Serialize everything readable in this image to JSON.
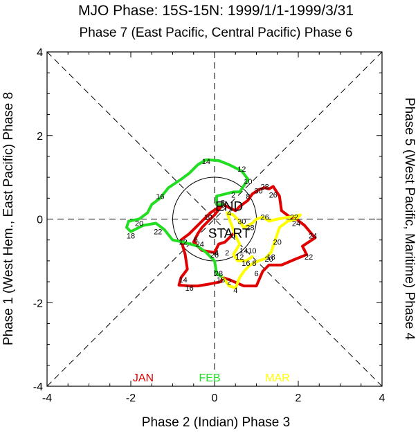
{
  "title": "MJO Phase: 15S-15N: 1999/1/1-1999/3/31",
  "top_label": "Phase 7 (East Pacific, Central Pacific) Phase 6",
  "bottom_label": "Phase 2 (Indian) Phase 3",
  "left_label": "Phase 1 (West Hem., East Pacific) Phase 8",
  "right_label": "Phase 5 (West Pacific, Maritime) Phase 4",
  "start_label": "START",
  "end_label": "END",
  "colors": {
    "jan": "#e00000",
    "feb": "#22dd22",
    "mar": "#ffff00"
  },
  "chart_data": {
    "type": "line",
    "xlim": [
      -4,
      4
    ],
    "ylim": [
      -4,
      4
    ],
    "x_ticks": [
      "-4",
      "-2",
      "0",
      "2",
      "4"
    ],
    "y_ticks": [
      "-4",
      "-2",
      "0",
      "2",
      "4"
    ],
    "unit_circle_radius": 1,
    "series": [
      {
        "name": "JAN",
        "color": "#e00000",
        "points": [
          [
            0.45,
            -0.35
          ],
          [
            0.25,
            -0.55
          ],
          [
            0.1,
            -0.6
          ],
          [
            0.0,
            -0.8
          ],
          [
            -0.3,
            -0.75
          ],
          [
            -0.5,
            -0.55
          ],
          [
            -0.4,
            -0.35
          ],
          [
            -0.3,
            -0.2
          ],
          [
            -0.15,
            -0.05
          ],
          [
            0.0,
            0.1
          ],
          [
            0.12,
            0.25
          ],
          [
            0.2,
            0.35
          ],
          [
            -0.1,
            0.15
          ],
          [
            -0.35,
            -0.1
          ],
          [
            -0.6,
            -0.35
          ],
          [
            -0.8,
            -0.5
          ],
          [
            -0.7,
            -0.85
          ],
          [
            -0.65,
            -1.2
          ],
          [
            -0.8,
            -1.4
          ],
          [
            -0.85,
            -1.58
          ],
          [
            -0.6,
            -1.6
          ],
          [
            -0.4,
            -1.6
          ],
          [
            -0.1,
            -1.55
          ],
          [
            0.15,
            -1.5
          ],
          [
            0.2,
            -1.4
          ],
          [
            0.35,
            -1.45
          ],
          [
            0.7,
            -1.6
          ],
          [
            1.0,
            -1.6
          ],
          [
            1.15,
            -1.25
          ],
          [
            1.3,
            -1.1
          ],
          [
            1.6,
            -1.1
          ],
          [
            1.95,
            -0.95
          ],
          [
            2.2,
            -0.85
          ],
          [
            2.1,
            -0.65
          ],
          [
            2.4,
            -0.45
          ],
          [
            2.15,
            -0.15
          ],
          [
            1.95,
            0.0
          ],
          [
            1.8,
            0.05
          ],
          [
            1.6,
            0.2
          ],
          [
            1.55,
            0.55
          ],
          [
            1.4,
            0.78
          ],
          [
            1.3,
            0.72
          ],
          [
            1.2,
            0.75
          ],
          [
            1.05,
            0.7
          ],
          [
            0.9,
            0.6
          ],
          [
            0.8,
            0.45
          ],
          [
            0.6,
            0.3
          ],
          [
            0.5,
            0.2
          ],
          [
            0.3,
            0.3
          ],
          [
            0.2,
            0.35
          ]
        ],
        "day_labels": [
          {
            "text": "2",
            "x": 0.3,
            "y": -0.8
          },
          {
            "text": "4",
            "x": 0.05,
            "y": -0.8
          },
          {
            "text": "6",
            "x": -0.45,
            "y": -0.48
          },
          {
            "text": "8",
            "x": 0.2,
            "y": 0.4
          },
          {
            "text": "10",
            "x": -0.15,
            "y": 0.05
          },
          {
            "text": "12",
            "x": -0.75,
            "y": -0.55
          },
          {
            "text": "14",
            "x": -0.75,
            "y": -1.45
          },
          {
            "text": "16",
            "x": -0.6,
            "y": -1.65
          },
          {
            "text": "18",
            "x": 0.15,
            "y": -1.45
          },
          {
            "text": "20",
            "x": 1.3,
            "y": -0.95
          },
          {
            "text": "22",
            "x": 2.25,
            "y": -0.9
          },
          {
            "text": "24",
            "x": 2.35,
            "y": -0.4
          },
          {
            "text": "26",
            "x": 1.4,
            "y": 0.58
          },
          {
            "text": "28",
            "x": 1.2,
            "y": 0.78
          },
          {
            "text": "30",
            "x": 1.05,
            "y": 0.68
          }
        ]
      },
      {
        "name": "FEB",
        "color": "#22dd22",
        "points": [
          [
            0.2,
            0.35
          ],
          [
            0.05,
            0.35
          ],
          [
            0.05,
            0.55
          ],
          [
            0.25,
            0.6
          ],
          [
            0.45,
            0.65
          ],
          [
            0.6,
            0.65
          ],
          [
            0.8,
            0.95
          ],
          [
            0.65,
            1.15
          ],
          [
            0.55,
            1.2
          ],
          [
            0.35,
            1.3
          ],
          [
            0.1,
            1.4
          ],
          [
            -0.2,
            1.42
          ],
          [
            -0.4,
            1.3
          ],
          [
            -0.6,
            1.1
          ],
          [
            -0.8,
            0.95
          ],
          [
            -1.1,
            0.75
          ],
          [
            -1.3,
            0.5
          ],
          [
            -1.5,
            0.35
          ],
          [
            -1.6,
            0.15
          ],
          [
            -1.8,
            0.0
          ],
          [
            -2.05,
            -0.05
          ],
          [
            -2.1,
            -0.2
          ],
          [
            -2.0,
            -0.3
          ],
          [
            -1.7,
            -0.15
          ],
          [
            -1.4,
            -0.1
          ],
          [
            -1.2,
            -0.25
          ],
          [
            -1.0,
            -0.5
          ],
          [
            -0.75,
            -0.55
          ],
          [
            -0.4,
            -0.65
          ],
          [
            -0.2,
            -0.8
          ],
          [
            0.0,
            -1.0
          ],
          [
            0.05,
            -1.3
          ],
          [
            0.2,
            -1.4
          ]
        ],
        "day_labels": [
          {
            "text": "2",
            "x": 0.45,
            "y": 0.58
          },
          {
            "text": "4",
            "x": 0.35,
            "y": 0.15
          },
          {
            "text": "6",
            "x": 0.2,
            "y": 0.33
          },
          {
            "text": "8",
            "x": 0.8,
            "y": 0.55
          },
          {
            "text": "10",
            "x": 0.8,
            "y": 0.9
          },
          {
            "text": "12",
            "x": 0.65,
            "y": 1.2
          },
          {
            "text": "14",
            "x": -0.2,
            "y": 1.38
          },
          {
            "text": "16",
            "x": -1.3,
            "y": 0.55
          },
          {
            "text": "18",
            "x": -2.0,
            "y": -0.4
          },
          {
            "text": "20",
            "x": -1.8,
            "y": -0.1
          },
          {
            "text": "22",
            "x": -1.35,
            "y": -0.3
          },
          {
            "text": "24",
            "x": -0.35,
            "y": -0.6
          },
          {
            "text": "26",
            "x": 0.0,
            "y": -0.85
          },
          {
            "text": "28",
            "x": 0.1,
            "y": -1.3
          }
        ]
      },
      {
        "name": "MAR",
        "color": "#ffff00",
        "points": [
          [
            0.2,
            -1.4
          ],
          [
            0.35,
            -1.6
          ],
          [
            0.5,
            -1.65
          ],
          [
            0.6,
            -1.4
          ],
          [
            0.7,
            -1.25
          ],
          [
            0.85,
            -1.1
          ],
          [
            0.95,
            -1.05
          ],
          [
            1.05,
            -1.0
          ],
          [
            1.2,
            -0.95
          ],
          [
            1.35,
            -0.8
          ],
          [
            1.45,
            -0.5
          ],
          [
            1.55,
            -0.2
          ],
          [
            1.75,
            -0.05
          ],
          [
            1.95,
            0.0
          ],
          [
            2.05,
            0.1
          ],
          [
            1.8,
            0.05
          ],
          [
            1.5,
            0.0
          ],
          [
            1.3,
            -0.05
          ],
          [
            1.15,
            0.05
          ],
          [
            1.0,
            0.0
          ],
          [
            0.9,
            -0.1
          ],
          [
            0.7,
            -0.2
          ],
          [
            0.55,
            0.0
          ],
          [
            0.45,
            0.1
          ],
          [
            0.3,
            0.15
          ],
          [
            0.5,
            -0.4
          ],
          [
            0.6,
            -0.6
          ],
          [
            0.45,
            -0.85
          ],
          [
            0.55,
            -1.0
          ],
          [
            0.75,
            -1.0
          ],
          [
            0.9,
            -0.9
          ]
        ],
        "day_labels": [
          {
            "text": "2",
            "x": 0.35,
            "y": -1.5
          },
          {
            "text": "4",
            "x": 0.5,
            "y": -1.7
          },
          {
            "text": "6",
            "x": 1.0,
            "y": -1.3
          },
          {
            "text": "8",
            "x": 0.95,
            "y": -1.05
          },
          {
            "text": "10",
            "x": 0.9,
            "y": -0.75
          },
          {
            "text": "12",
            "x": 0.6,
            "y": -0.9
          },
          {
            "text": "14",
            "x": 0.7,
            "y": -0.75
          },
          {
            "text": "16",
            "x": 0.75,
            "y": -1.05
          },
          {
            "text": "18",
            "x": 1.35,
            "y": -0.9
          },
          {
            "text": "20",
            "x": 1.5,
            "y": -0.55
          },
          {
            "text": "22",
            "x": 1.9,
            "y": 0.05
          },
          {
            "text": "24",
            "x": 1.95,
            "y": -0.1
          },
          {
            "text": "26",
            "x": 1.2,
            "y": 0.05
          },
          {
            "text": "28",
            "x": 0.85,
            "y": -0.2
          },
          {
            "text": "30",
            "x": 0.65,
            "y": -0.05
          }
        ]
      }
    ],
    "legend": [
      {
        "label": "JAN",
        "color": "#e00000"
      },
      {
        "label": "FEB",
        "color": "#22dd22"
      },
      {
        "label": "MAR",
        "color": "#ffff00"
      }
    ]
  }
}
